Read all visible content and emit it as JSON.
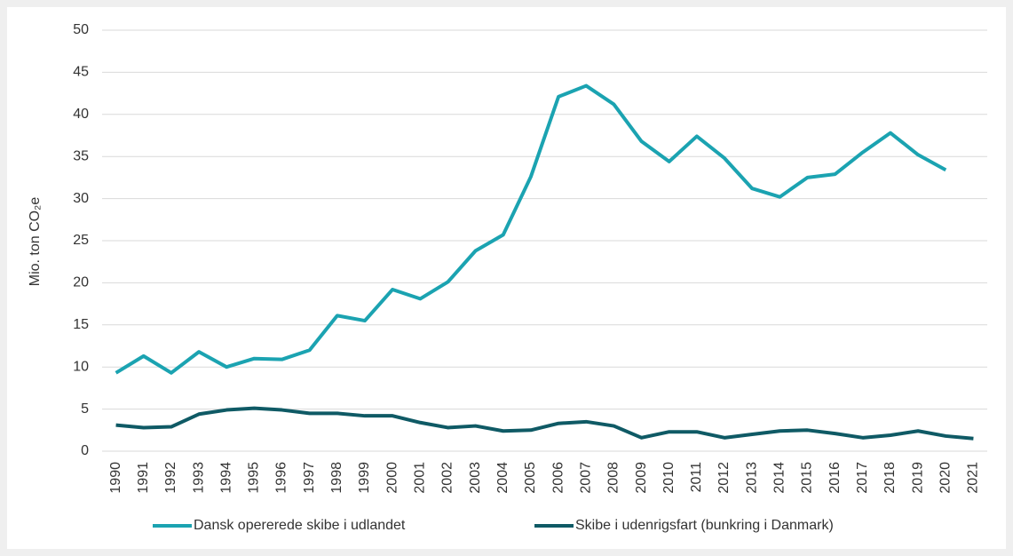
{
  "chart_data": {
    "type": "line",
    "y_label": "Mio. ton CO₂e",
    "categories": [
      "1990",
      "1991",
      "1992",
      "1993",
      "1994",
      "1995",
      "1996",
      "1997",
      "1998",
      "1999",
      "2000",
      "2001",
      "2002",
      "2003",
      "2004",
      "2005",
      "2006",
      "2007",
      "2008",
      "2009",
      "2010",
      "2011",
      "2012",
      "2013",
      "2014",
      "2015",
      "2016",
      "2017",
      "2018",
      "2019",
      "2020",
      "2021"
    ],
    "series": [
      {
        "name": "Dansk opererede skibe i udlandet",
        "color": "#1ba3b1",
        "values": [
          9.3,
          11.3,
          9.3,
          11.8,
          10.0,
          11.0,
          10.9,
          12.0,
          16.1,
          15.5,
          19.2,
          18.1,
          20.1,
          23.8,
          25.7,
          32.6,
          42.1,
          43.4,
          41.2,
          36.8,
          34.4,
          37.4,
          34.8,
          31.2,
          30.2,
          32.5,
          32.9,
          35.5,
          37.8,
          35.2,
          33.4,
          null
        ]
      },
      {
        "name": "Skibe i udenrigsfart (bunkring i Danmark)",
        "color": "#0f5a65",
        "values": [
          3.1,
          2.8,
          2.9,
          4.4,
          4.9,
          5.1,
          4.9,
          4.5,
          4.5,
          4.2,
          4.2,
          3.4,
          2.8,
          3.0,
          2.4,
          2.5,
          3.3,
          3.5,
          3.0,
          1.6,
          2.3,
          2.3,
          1.6,
          2.0,
          2.4,
          2.5,
          2.1,
          1.6,
          1.9,
          2.4,
          1.8,
          1.5
        ]
      }
    ],
    "ylim": [
      0,
      50
    ],
    "yticks": [
      0,
      5,
      10,
      15,
      20,
      25,
      30,
      35,
      40,
      45,
      50
    ],
    "grid": true,
    "legend": "bottom"
  }
}
